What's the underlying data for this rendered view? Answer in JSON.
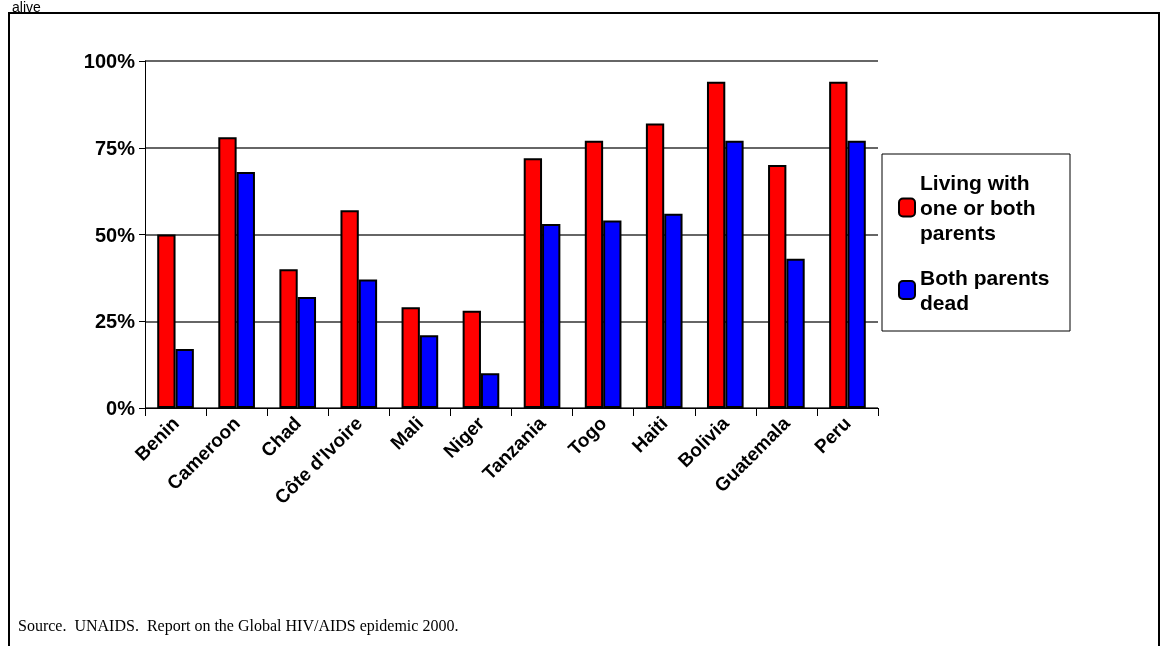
{
  "chart_data": {
    "type": "bar",
    "categories": [
      "Benin",
      "Cameroon",
      "Chad",
      "Côte d'Ivoire",
      "Mali",
      "Niger",
      "Tanzania",
      "Togo",
      "Haiti",
      "Bolivia",
      "Guatemala",
      "Peru"
    ],
    "series": [
      {
        "name": "Living with one or both parents",
        "color": "#ff0000",
        "values": [
          50,
          78,
          40,
          57,
          29,
          28,
          72,
          77,
          82,
          94,
          70,
          94
        ]
      },
      {
        "name": "Both parents dead",
        "color": "#0000ff",
        "values": [
          17,
          68,
          32,
          37,
          21,
          10,
          53,
          54,
          56,
          77,
          43,
          77
        ]
      }
    ],
    "ylim": [
      0,
      100
    ],
    "yticks": [
      {
        "value": 0,
        "label": "0%"
      },
      {
        "value": 25,
        "label": "25%"
      },
      {
        "value": 50,
        "label": "50%"
      },
      {
        "value": 75,
        "label": "75%"
      },
      {
        "value": 100,
        "label": "100%"
      }
    ],
    "grid": "y",
    "legend": "right",
    "annotations": [
      "alive",
      "Source.  UNAIDS.  Report on the Global HIV/AIDS epidemic 2000."
    ]
  }
}
